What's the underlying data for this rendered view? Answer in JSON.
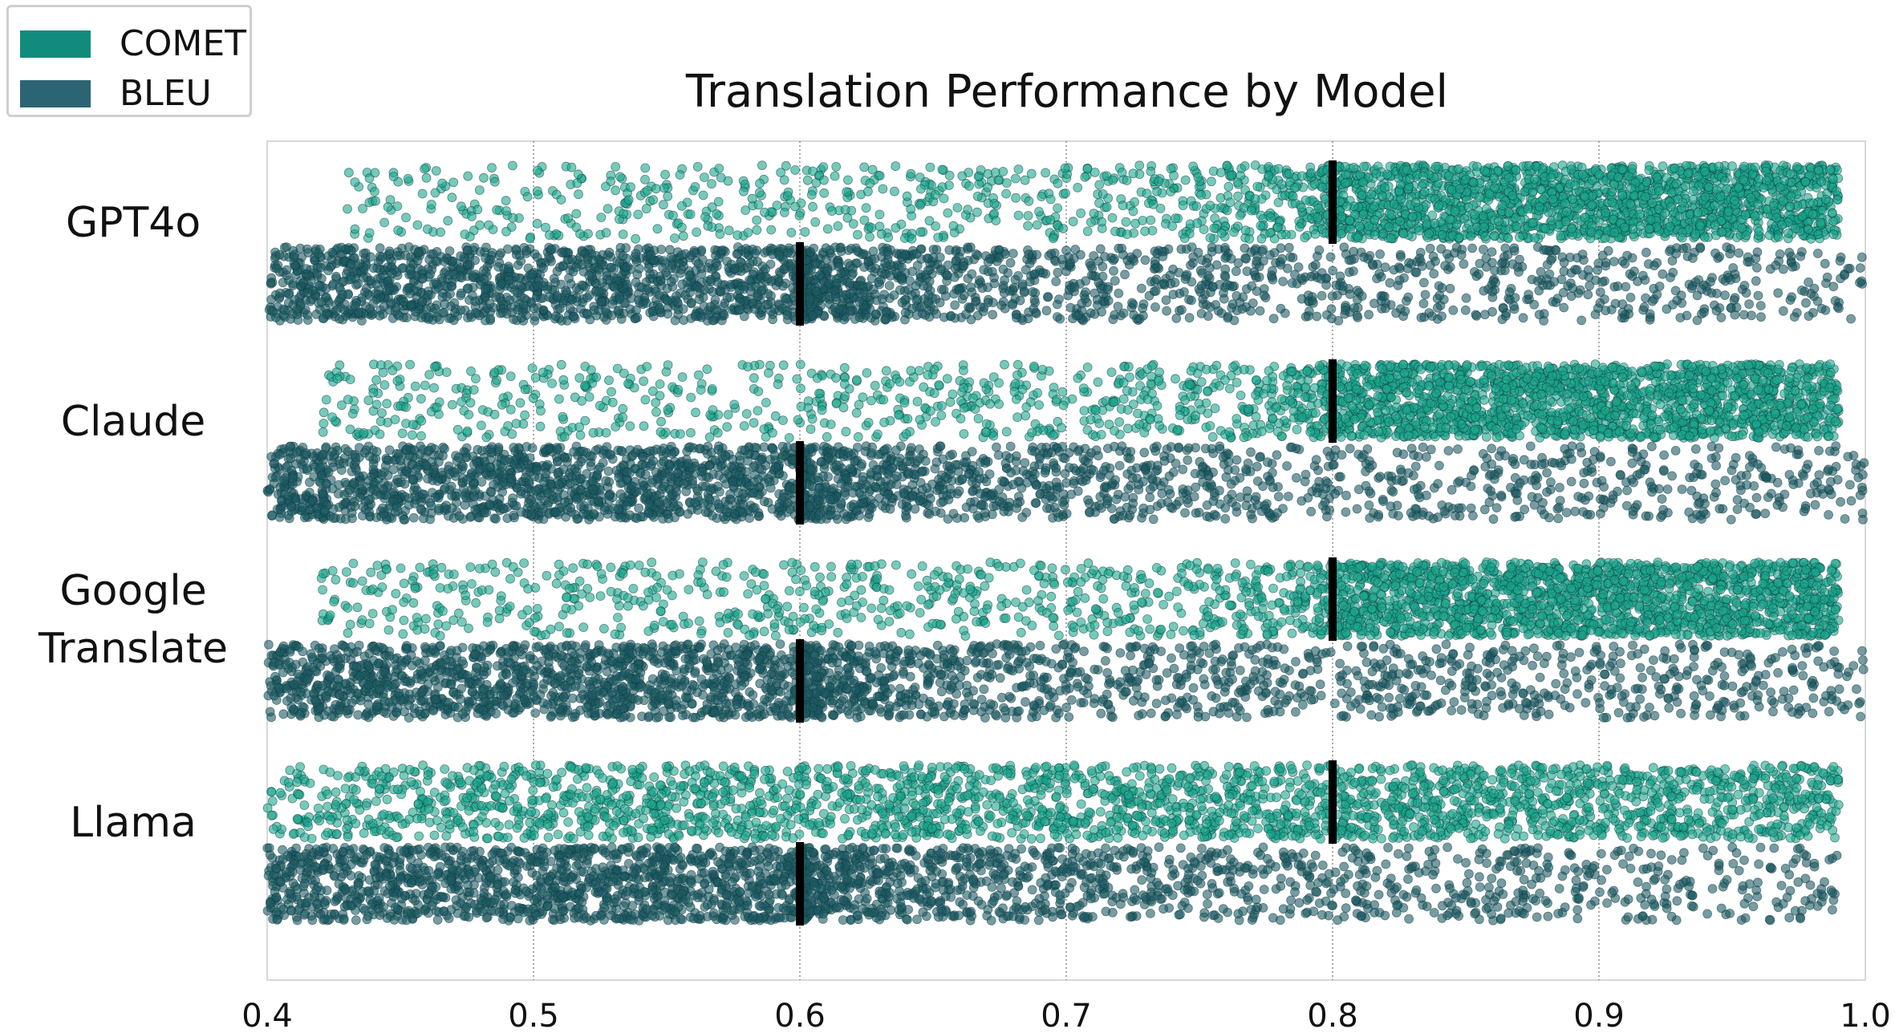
{
  "chart_data": {
    "type": "scatter",
    "title": "Translation Performance by Model",
    "xlabel": "",
    "ylabel": "",
    "xlim": [
      0.4,
      1.0
    ],
    "x_ticks": [
      "0.4",
      "0.5",
      "0.6",
      "0.7",
      "0.8",
      "0.9",
      "1.0"
    ],
    "grid": "vertical dotted",
    "legend_position": "top-left",
    "models": [
      "GPT4o",
      "Claude",
      "Google\nTranslate",
      "Llama"
    ],
    "series": [
      {
        "name": "COMET",
        "color": "#1aa68c",
        "medians": [
          0.8,
          0.8,
          0.8,
          0.8
        ],
        "ranges": [
          [
            0.43,
            0.99
          ],
          [
            0.42,
            0.99
          ],
          [
            0.42,
            0.99
          ],
          [
            0.4,
            0.99
          ]
        ]
      },
      {
        "name": "BLEU",
        "color": "#1d5a62",
        "medians": [
          0.6,
          0.6,
          0.6,
          0.6
        ],
        "ranges": [
          [
            0.4,
            1.0
          ],
          [
            0.4,
            1.0
          ],
          [
            0.4,
            1.0
          ],
          [
            0.4,
            0.99
          ]
        ]
      }
    ]
  },
  "legend": {
    "items": [
      {
        "label": "COMET",
        "color": "#118c7c"
      },
      {
        "label": "BLEU",
        "color": "#2b6473"
      }
    ]
  }
}
